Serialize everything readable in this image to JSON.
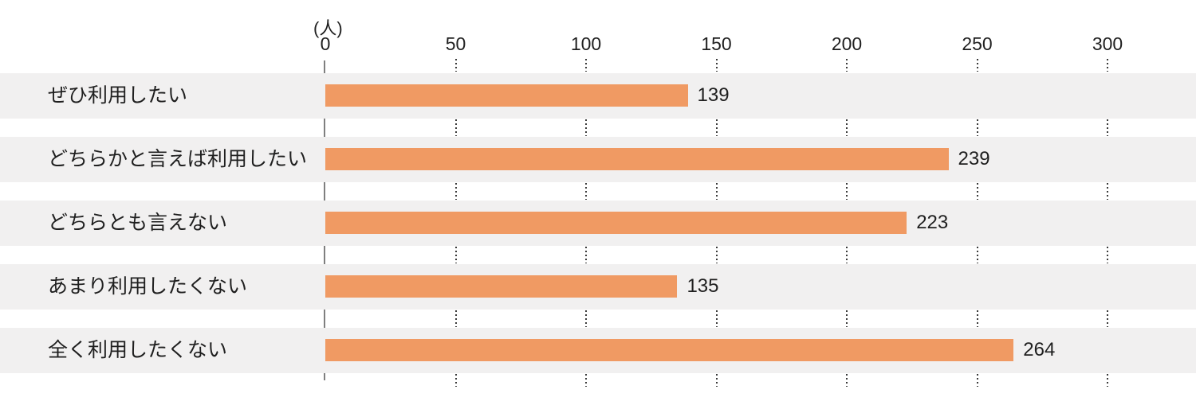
{
  "chart_data": {
    "type": "bar",
    "orientation": "horizontal",
    "unit_label": "(人)",
    "categories": [
      "ぜひ利用したい",
      "どちらかと言えば利用したい",
      "どちらとも言えない",
      "あまり利用したくない",
      "全く利用したくない"
    ],
    "values": [
      139,
      239,
      223,
      135,
      264
    ],
    "x_ticks": [
      0,
      50,
      100,
      150,
      200,
      250,
      300
    ],
    "tick_labels": [
      "0",
      "50",
      "100",
      "150",
      "200",
      "250",
      "300"
    ],
    "xlim": [
      0,
      334
    ],
    "grid": "dotted vertical segments in white gaps only",
    "legend": "none",
    "colors": {
      "bar": "#f09a63",
      "row_stripe": "#f1f0f0",
      "axis_line": "#7f7f7f",
      "grid_dots": "#3b3b3b",
      "text": "#1f1f1f",
      "background": "#ffffff"
    }
  }
}
